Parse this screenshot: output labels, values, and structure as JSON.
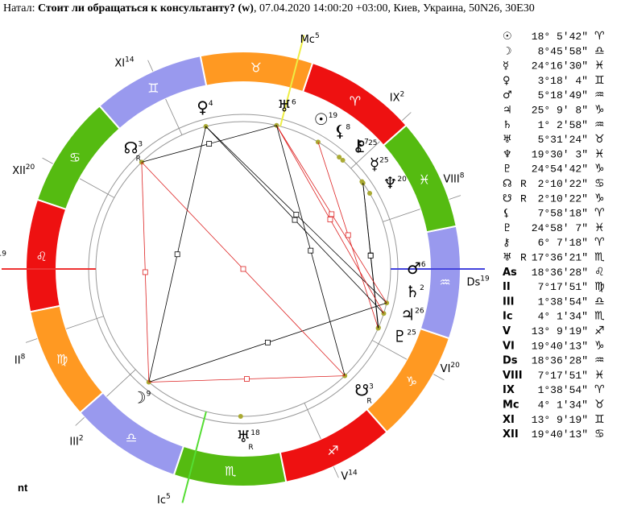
{
  "header": {
    "prefix": "Натал: ",
    "title": "Стоит ли обращаться к консультанту? (w)",
    "details": ", 07.04.2020 14:00:20 +03:00, Киев, Украина, 50N26, 30E30"
  },
  "signs": [
    "♈",
    "♉",
    "♊",
    "♋",
    "♌",
    "♍",
    "♎",
    "♏",
    "♐",
    "♑",
    "♒",
    "♓"
  ],
  "positions": [
    {
      "symbol": "☉",
      "degree": "18° 5′42″",
      "sign": "♈",
      "wheel": "19"
    },
    {
      "symbol": "☽",
      "degree": "8°45′58″",
      "sign": "♎",
      "wheel": "9"
    },
    {
      "symbol": "☿",
      "degree": "24°16′30″",
      "sign": "♓",
      "wheel": "25"
    },
    {
      "symbol": "♀",
      "degree": "3°18′ 4″",
      "sign": "♊",
      "wheel": "4"
    },
    {
      "symbol": "♂",
      "degree": "5°18′49″",
      "sign": "♒",
      "wheel": "6"
    },
    {
      "symbol": "♃",
      "degree": "25° 9′ 8″",
      "sign": "♑",
      "wheel": "26"
    },
    {
      "symbol": "♄",
      "degree": "1° 2′58″",
      "sign": "♒",
      "wheel": "2"
    },
    {
      "symbol": "♅",
      "degree": "5°31′24″",
      "sign": "♉",
      "wheel": "6"
    },
    {
      "symbol": "♆",
      "degree": "19°30′ 3″",
      "sign": "♓",
      "wheel": "20"
    },
    {
      "symbol": "♇",
      "degree": "24°54′42″",
      "sign": "♑",
      "wheel": "25"
    },
    {
      "symbol": "☊",
      "retro": "R",
      "degree": "2°10′22″",
      "sign": "♋",
      "wheel": "3"
    },
    {
      "symbol": "☋",
      "retro": "R",
      "degree": "2°10′22″",
      "sign": "♑",
      "wheel": "3"
    },
    {
      "symbol": "⚸",
      "degree": "7°58′18″",
      "sign": "♈",
      "wheel": "8"
    },
    {
      "symbol": "♇",
      "degree": "24°58′ 7″",
      "sign": "♓",
      "wheel": "25"
    },
    {
      "symbol": "⚷",
      "degree": "6° 7′18″",
      "sign": "♈",
      "wheel": "7"
    },
    {
      "symbol": "♅",
      "retro": "R",
      "degree": "17°36′21″",
      "sign": "♏",
      "wheel": "18"
    },
    {
      "symbol": "As",
      "degree": "18°36′28″",
      "sign": "♌",
      "wheel": "19"
    },
    {
      "symbol": "II",
      "degree": "7°17′51″",
      "sign": "♍",
      "wheel": "8"
    },
    {
      "symbol": "III",
      "degree": "1°38′54″",
      "sign": "♎",
      "wheel": "2"
    },
    {
      "symbol": "Ic",
      "degree": "4° 1′34″",
      "sign": "♏",
      "wheel": "5"
    },
    {
      "symbol": "V",
      "degree": "13° 9′19″",
      "sign": "♐",
      "wheel": "14"
    },
    {
      "symbol": "VI",
      "degree": "19°40′13″",
      "sign": "♑",
      "wheel": "20"
    },
    {
      "symbol": "Ds",
      "degree": "18°36′28″",
      "sign": "♒",
      "wheel": "19"
    },
    {
      "symbol": "VIII",
      "degree": "7°17′51″",
      "sign": "♓",
      "wheel": "8"
    },
    {
      "symbol": "IX",
      "degree": "1°38′54″",
      "sign": "♈",
      "wheel": "2"
    },
    {
      "symbol": "Mc",
      "degree": "4° 1′34″",
      "sign": "♉",
      "wheel": "5"
    },
    {
      "symbol": "XI",
      "degree": "13° 9′19″",
      "sign": "♊",
      "wheel": "14"
    },
    {
      "symbol": "XII",
      "degree": "19°40′13″",
      "sign": "♋",
      "wheel": "20"
    }
  ],
  "footer": "nt"
}
